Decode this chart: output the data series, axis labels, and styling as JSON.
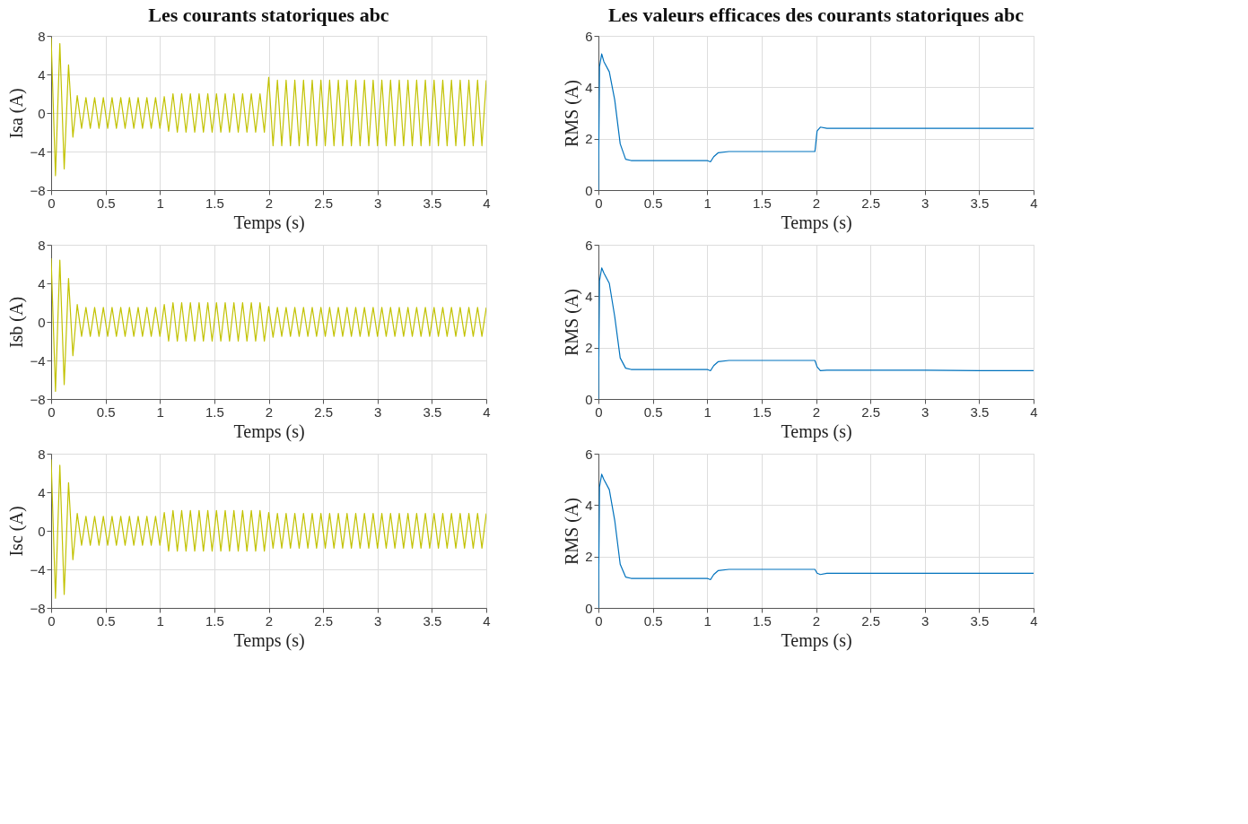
{
  "chart_data": [
    {
      "type": "line",
      "title": "Les courants statoriques abc",
      "xlabel": "Temps (s)",
      "ylabel": "Isa (A)",
      "x": [
        0,
        0.04,
        0.08,
        0.12,
        0.16,
        0.2,
        0.24,
        0.28,
        0.32,
        0.36,
        0.4,
        0.44,
        0.48,
        0.52,
        0.56,
        0.6,
        0.64,
        0.68,
        0.72,
        0.76,
        0.8,
        0.84,
        0.88,
        0.92,
        0.96,
        1.0,
        1.04,
        1.08,
        1.12,
        1.16,
        1.2,
        1.24,
        1.28,
        1.32,
        1.36,
        1.4,
        1.44,
        1.48,
        1.52,
        1.56,
        1.6,
        1.64,
        1.68,
        1.72,
        1.76,
        1.8,
        1.84,
        1.88,
        1.92,
        1.96,
        2.0,
        2.04,
        2.08,
        2.12,
        2.16,
        2.2,
        2.24,
        2.28,
        2.32,
        2.36,
        2.4,
        2.44,
        2.48,
        2.52,
        2.56,
        2.6,
        2.64,
        2.68,
        2.72,
        2.76,
        2.8,
        2.84,
        2.88,
        2.92,
        2.96,
        3.0,
        3.04,
        3.08,
        3.12,
        3.16,
        3.2,
        3.24,
        3.28,
        3.32,
        3.36,
        3.4,
        3.44,
        3.48,
        3.52,
        3.56,
        3.6,
        3.64,
        3.68,
        3.72,
        3.76,
        3.8,
        3.84,
        3.88,
        3.92,
        3.96,
        4.0
      ],
      "series": [
        {
          "color": "#c2c200",
          "values": [
            7.8,
            -6.5,
            7.2,
            -5.8,
            5.0,
            -2.5,
            1.8,
            -1.6,
            1.6,
            -1.6,
            1.6,
            -1.6,
            1.6,
            -1.6,
            1.6,
            -1.6,
            1.6,
            -1.6,
            1.6,
            -1.6,
            1.6,
            -1.6,
            1.6,
            -1.6,
            1.6,
            -1.6,
            1.7,
            -1.9,
            2.0,
            -2.0,
            2.0,
            -2.0,
            2.0,
            -2.0,
            2.0,
            -2.0,
            2.0,
            -2.0,
            2.0,
            -2.0,
            2.0,
            -2.0,
            2.0,
            -2.0,
            2.0,
            -2.0,
            2.0,
            -2.0,
            2.0,
            -2.0,
            3.7,
            -3.4,
            3.4,
            -3.4,
            3.4,
            -3.4,
            3.4,
            -3.4,
            3.4,
            -3.4,
            3.4,
            -3.4,
            3.4,
            -3.4,
            3.4,
            -3.4,
            3.4,
            -3.4,
            3.4,
            -3.4,
            3.4,
            -3.4,
            3.4,
            -3.4,
            3.4,
            -3.4,
            3.4,
            -3.4,
            3.4,
            -3.4,
            3.4,
            -3.4,
            3.4,
            -3.4,
            3.4,
            -3.4,
            3.4,
            -3.4,
            3.4,
            -3.4,
            3.4,
            -3.4,
            3.4,
            -3.4,
            3.4,
            -3.4,
            3.4,
            -3.4,
            3.4,
            -3.4,
            3.4
          ]
        }
      ],
      "xlim": [
        0,
        4
      ],
      "xticks": [
        0,
        0.5,
        1,
        1.5,
        2,
        2.5,
        3,
        3.5,
        4
      ],
      "ylim": [
        -8,
        8
      ],
      "yticks": [
        -8,
        -4,
        0,
        4,
        8
      ],
      "grid": true
    },
    {
      "type": "line",
      "title": "Les valeurs efficaces des courants statoriques abc",
      "xlabel": "Temps (s)",
      "ylabel": "RMS (A)",
      "x": [
        0,
        0.01,
        0.03,
        0.05,
        0.1,
        0.15,
        0.2,
        0.25,
        0.3,
        0.5,
        0.75,
        1.0,
        1.03,
        1.06,
        1.1,
        1.2,
        1.5,
        1.8,
        1.99,
        2.01,
        2.04,
        2.1,
        2.5,
        3.0,
        3.5,
        4.0
      ],
      "series": [
        {
          "color": "#0072bd",
          "values": [
            0,
            4.8,
            5.3,
            5.0,
            4.6,
            3.5,
            1.8,
            1.2,
            1.15,
            1.15,
            1.15,
            1.15,
            1.1,
            1.3,
            1.45,
            1.5,
            1.5,
            1.5,
            1.5,
            2.3,
            2.45,
            2.4,
            2.4,
            2.4,
            2.4,
            2.4
          ]
        }
      ],
      "xlim": [
        0,
        4
      ],
      "xticks": [
        0,
        0.5,
        1,
        1.5,
        2,
        2.5,
        3,
        3.5,
        4
      ],
      "ylim": [
        0,
        6
      ],
      "yticks": [
        0,
        2,
        4,
        6
      ],
      "grid": true
    },
    {
      "type": "line",
      "xlabel": "Temps (s)",
      "ylabel": "Isb (A)",
      "x": [
        0,
        0.04,
        0.08,
        0.12,
        0.16,
        0.2,
        0.24,
        0.28,
        0.32,
        0.36,
        0.4,
        0.44,
        0.48,
        0.52,
        0.56,
        0.6,
        0.64,
        0.68,
        0.72,
        0.76,
        0.8,
        0.84,
        0.88,
        0.92,
        0.96,
        1.0,
        1.04,
        1.08,
        1.12,
        1.16,
        1.2,
        1.24,
        1.28,
        1.32,
        1.36,
        1.4,
        1.44,
        1.48,
        1.52,
        1.56,
        1.6,
        1.64,
        1.68,
        1.72,
        1.76,
        1.8,
        1.84,
        1.88,
        1.92,
        1.96,
        2.0,
        2.04,
        2.08,
        2.12,
        2.16,
        2.2,
        2.24,
        2.28,
        2.32,
        2.36,
        2.4,
        2.44,
        2.48,
        2.52,
        2.56,
        2.6,
        2.64,
        2.68,
        2.72,
        2.76,
        2.8,
        2.84,
        2.88,
        2.92,
        2.96,
        3.0,
        3.04,
        3.08,
        3.12,
        3.16,
        3.2,
        3.24,
        3.28,
        3.32,
        3.36,
        3.4,
        3.44,
        3.48,
        3.52,
        3.56,
        3.6,
        3.64,
        3.68,
        3.72,
        3.76,
        3.8,
        3.84,
        3.88,
        3.92,
        3.96,
        4.0
      ],
      "series": [
        {
          "color": "#c2c200",
          "values": [
            6.6,
            -7.2,
            6.4,
            -6.5,
            4.5,
            -3.5,
            1.8,
            -1.5,
            1.5,
            -1.5,
            1.5,
            -1.5,
            1.5,
            -1.5,
            1.5,
            -1.5,
            1.5,
            -1.5,
            1.5,
            -1.5,
            1.5,
            -1.5,
            1.5,
            -1.5,
            1.5,
            -1.5,
            1.8,
            -2.0,
            2.0,
            -2.0,
            2.0,
            -2.0,
            2.0,
            -2.0,
            2.0,
            -2.0,
            2.0,
            -2.0,
            2.0,
            -2.0,
            2.0,
            -2.0,
            2.0,
            -2.0,
            2.0,
            -2.0,
            2.0,
            -2.0,
            2.0,
            -2.0,
            1.6,
            -1.6,
            1.5,
            -1.5,
            1.5,
            -1.5,
            1.5,
            -1.5,
            1.5,
            -1.5,
            1.5,
            -1.5,
            1.5,
            -1.5,
            1.5,
            -1.5,
            1.5,
            -1.5,
            1.5,
            -1.5,
            1.5,
            -1.5,
            1.5,
            -1.5,
            1.5,
            -1.5,
            1.5,
            -1.5,
            1.5,
            -1.5,
            1.5,
            -1.5,
            1.5,
            -1.5,
            1.5,
            -1.5,
            1.5,
            -1.5,
            1.5,
            -1.5,
            1.5,
            -1.5,
            1.5,
            -1.5,
            1.5,
            -1.5,
            1.5,
            -1.5,
            1.5,
            -1.5,
            1.5
          ]
        }
      ],
      "xlim": [
        0,
        4
      ],
      "xticks": [
        0,
        0.5,
        1,
        1.5,
        2,
        2.5,
        3,
        3.5,
        4
      ],
      "ylim": [
        -8,
        8
      ],
      "yticks": [
        -8,
        -4,
        0,
        4,
        8
      ],
      "grid": true
    },
    {
      "type": "line",
      "xlabel": "Temps (s)",
      "ylabel": "RMS (A)",
      "x": [
        0,
        0.01,
        0.03,
        0.05,
        0.1,
        0.15,
        0.2,
        0.25,
        0.3,
        0.5,
        0.75,
        1.0,
        1.03,
        1.06,
        1.1,
        1.2,
        1.5,
        1.8,
        1.99,
        2.01,
        2.04,
        2.1,
        2.5,
        3.0,
        3.5,
        4.0
      ],
      "series": [
        {
          "color": "#0072bd",
          "values": [
            0,
            4.6,
            5.1,
            4.9,
            4.5,
            3.2,
            1.6,
            1.2,
            1.15,
            1.15,
            1.15,
            1.15,
            1.1,
            1.3,
            1.45,
            1.5,
            1.5,
            1.5,
            1.5,
            1.25,
            1.1,
            1.12,
            1.12,
            1.12,
            1.1,
            1.1
          ]
        }
      ],
      "xlim": [
        0,
        4
      ],
      "xticks": [
        0,
        0.5,
        1,
        1.5,
        2,
        2.5,
        3,
        3.5,
        4
      ],
      "ylim": [
        0,
        6
      ],
      "yticks": [
        0,
        2,
        4,
        6
      ],
      "grid": true
    },
    {
      "type": "line",
      "xlabel": "Temps (s)",
      "ylabel": "Isc (A)",
      "x": [
        0,
        0.04,
        0.08,
        0.12,
        0.16,
        0.2,
        0.24,
        0.28,
        0.32,
        0.36,
        0.4,
        0.44,
        0.48,
        0.52,
        0.56,
        0.6,
        0.64,
        0.68,
        0.72,
        0.76,
        0.8,
        0.84,
        0.88,
        0.92,
        0.96,
        1.0,
        1.04,
        1.08,
        1.12,
        1.16,
        1.2,
        1.24,
        1.28,
        1.32,
        1.36,
        1.4,
        1.44,
        1.48,
        1.52,
        1.56,
        1.6,
        1.64,
        1.68,
        1.72,
        1.76,
        1.8,
        1.84,
        1.88,
        1.92,
        1.96,
        2.0,
        2.04,
        2.08,
        2.12,
        2.16,
        2.2,
        2.24,
        2.28,
        2.32,
        2.36,
        2.4,
        2.44,
        2.48,
        2.52,
        2.56,
        2.6,
        2.64,
        2.68,
        2.72,
        2.76,
        2.8,
        2.84,
        2.88,
        2.92,
        2.96,
        3.0,
        3.04,
        3.08,
        3.12,
        3.16,
        3.2,
        3.24,
        3.28,
        3.32,
        3.36,
        3.4,
        3.44,
        3.48,
        3.52,
        3.56,
        3.6,
        3.64,
        3.68,
        3.72,
        3.76,
        3.8,
        3.84,
        3.88,
        3.92,
        3.96,
        4.0
      ],
      "series": [
        {
          "color": "#c2c200",
          "values": [
            7.4,
            -7.0,
            6.8,
            -6.6,
            5.0,
            -3.0,
            1.8,
            -1.5,
            1.5,
            -1.5,
            1.5,
            -1.5,
            1.5,
            -1.5,
            1.5,
            -1.5,
            1.5,
            -1.5,
            1.5,
            -1.5,
            1.5,
            -1.5,
            1.5,
            -1.5,
            1.5,
            -1.5,
            1.9,
            -2.1,
            2.1,
            -2.1,
            2.1,
            -2.1,
            2.1,
            -2.1,
            2.1,
            -2.1,
            2.1,
            -2.1,
            2.1,
            -2.1,
            2.1,
            -2.1,
            2.1,
            -2.1,
            2.1,
            -2.1,
            2.1,
            -2.1,
            2.1,
            -2.1,
            1.9,
            -1.8,
            1.8,
            -1.8,
            1.8,
            -1.8,
            1.8,
            -1.8,
            1.8,
            -1.8,
            1.8,
            -1.8,
            1.8,
            -1.8,
            1.8,
            -1.8,
            1.8,
            -1.8,
            1.8,
            -1.8,
            1.8,
            -1.8,
            1.8,
            -1.8,
            1.8,
            -1.8,
            1.8,
            -1.8,
            1.8,
            -1.8,
            1.8,
            -1.8,
            1.8,
            -1.8,
            1.8,
            -1.8,
            1.8,
            -1.8,
            1.8,
            -1.8,
            1.8,
            -1.8,
            1.8,
            -1.8,
            1.8,
            -1.8,
            1.8,
            -1.8,
            1.8,
            -1.8,
            1.8
          ]
        }
      ],
      "xlim": [
        0,
        4
      ],
      "xticks": [
        0,
        0.5,
        1,
        1.5,
        2,
        2.5,
        3,
        3.5,
        4
      ],
      "ylim": [
        -8,
        8
      ],
      "yticks": [
        -8,
        -4,
        0,
        4,
        8
      ],
      "grid": true
    },
    {
      "type": "line",
      "xlabel": "Temps (s)",
      "ylabel": "RMS (A)",
      "x": [
        0,
        0.01,
        0.03,
        0.05,
        0.1,
        0.15,
        0.2,
        0.25,
        0.3,
        0.5,
        0.75,
        1.0,
        1.03,
        1.06,
        1.1,
        1.2,
        1.5,
        1.8,
        1.99,
        2.01,
        2.04,
        2.1,
        2.5,
        3.0,
        3.5,
        4.0
      ],
      "series": [
        {
          "color": "#0072bd",
          "values": [
            0,
            4.7,
            5.2,
            5.0,
            4.6,
            3.4,
            1.7,
            1.2,
            1.15,
            1.15,
            1.15,
            1.15,
            1.1,
            1.3,
            1.45,
            1.5,
            1.5,
            1.5,
            1.5,
            1.35,
            1.3,
            1.35,
            1.35,
            1.35,
            1.35,
            1.35
          ]
        }
      ],
      "xlim": [
        0,
        4
      ],
      "xticks": [
        0,
        0.5,
        1,
        1.5,
        2,
        2.5,
        3,
        3.5,
        4
      ],
      "ylim": [
        0,
        6
      ],
      "yticks": [
        0,
        2,
        4,
        6
      ],
      "grid": true
    }
  ]
}
